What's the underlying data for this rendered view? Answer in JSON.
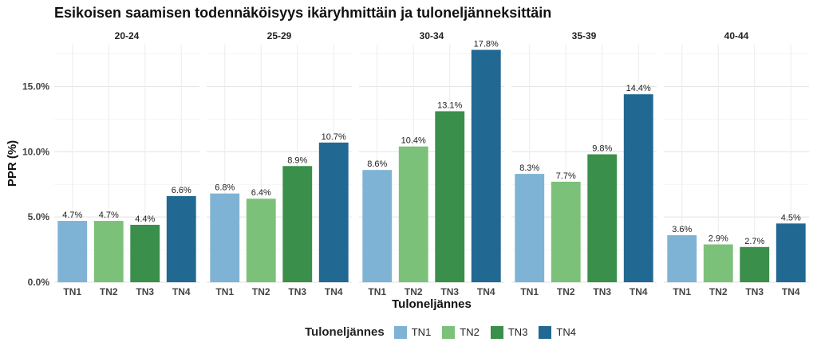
{
  "chart_data": {
    "type": "bar",
    "title": "Esikoisen saamisen todennäköisyys ikäryhmittäin ja tuloneljänneksittäin",
    "xlabel": "Tuloneljännes",
    "ylabel": "PPR (%)",
    "ylim": [
      0,
      18.2
    ],
    "yticks": [
      "0.0%",
      "5.0%",
      "10.0%",
      "15.0%"
    ],
    "ytick_values": [
      0,
      5,
      10,
      15
    ],
    "categories": [
      "TN1",
      "TN2",
      "TN3",
      "TN4"
    ],
    "colors": [
      "#7fb3d5",
      "#7cc17a",
      "#3a8f4a",
      "#216893"
    ],
    "legend_title": "Tuloneljännes",
    "legend_position": "bottom",
    "grid": true,
    "facets": [
      {
        "name": "20-24",
        "values": [
          4.7,
          4.7,
          4.4,
          6.6
        ],
        "labels": [
          "4.7%",
          "4.7%",
          "4.4%",
          "6.6%"
        ]
      },
      {
        "name": "25-29",
        "values": [
          6.8,
          6.4,
          8.9,
          10.7
        ],
        "labels": [
          "6.8%",
          "6.4%",
          "8.9%",
          "10.7%"
        ]
      },
      {
        "name": "30-34",
        "values": [
          8.6,
          10.4,
          13.1,
          17.8
        ],
        "labels": [
          "8.6%",
          "10.4%",
          "13.1%",
          "17.8%"
        ]
      },
      {
        "name": "35-39",
        "values": [
          8.3,
          7.7,
          9.8,
          14.4
        ],
        "labels": [
          "8.3%",
          "7.7%",
          "9.8%",
          "14.4%"
        ]
      },
      {
        "name": "40-44",
        "values": [
          3.6,
          2.9,
          2.7,
          4.5
        ],
        "labels": [
          "3.6%",
          "2.9%",
          "2.7%",
          "4.5%"
        ]
      }
    ]
  }
}
